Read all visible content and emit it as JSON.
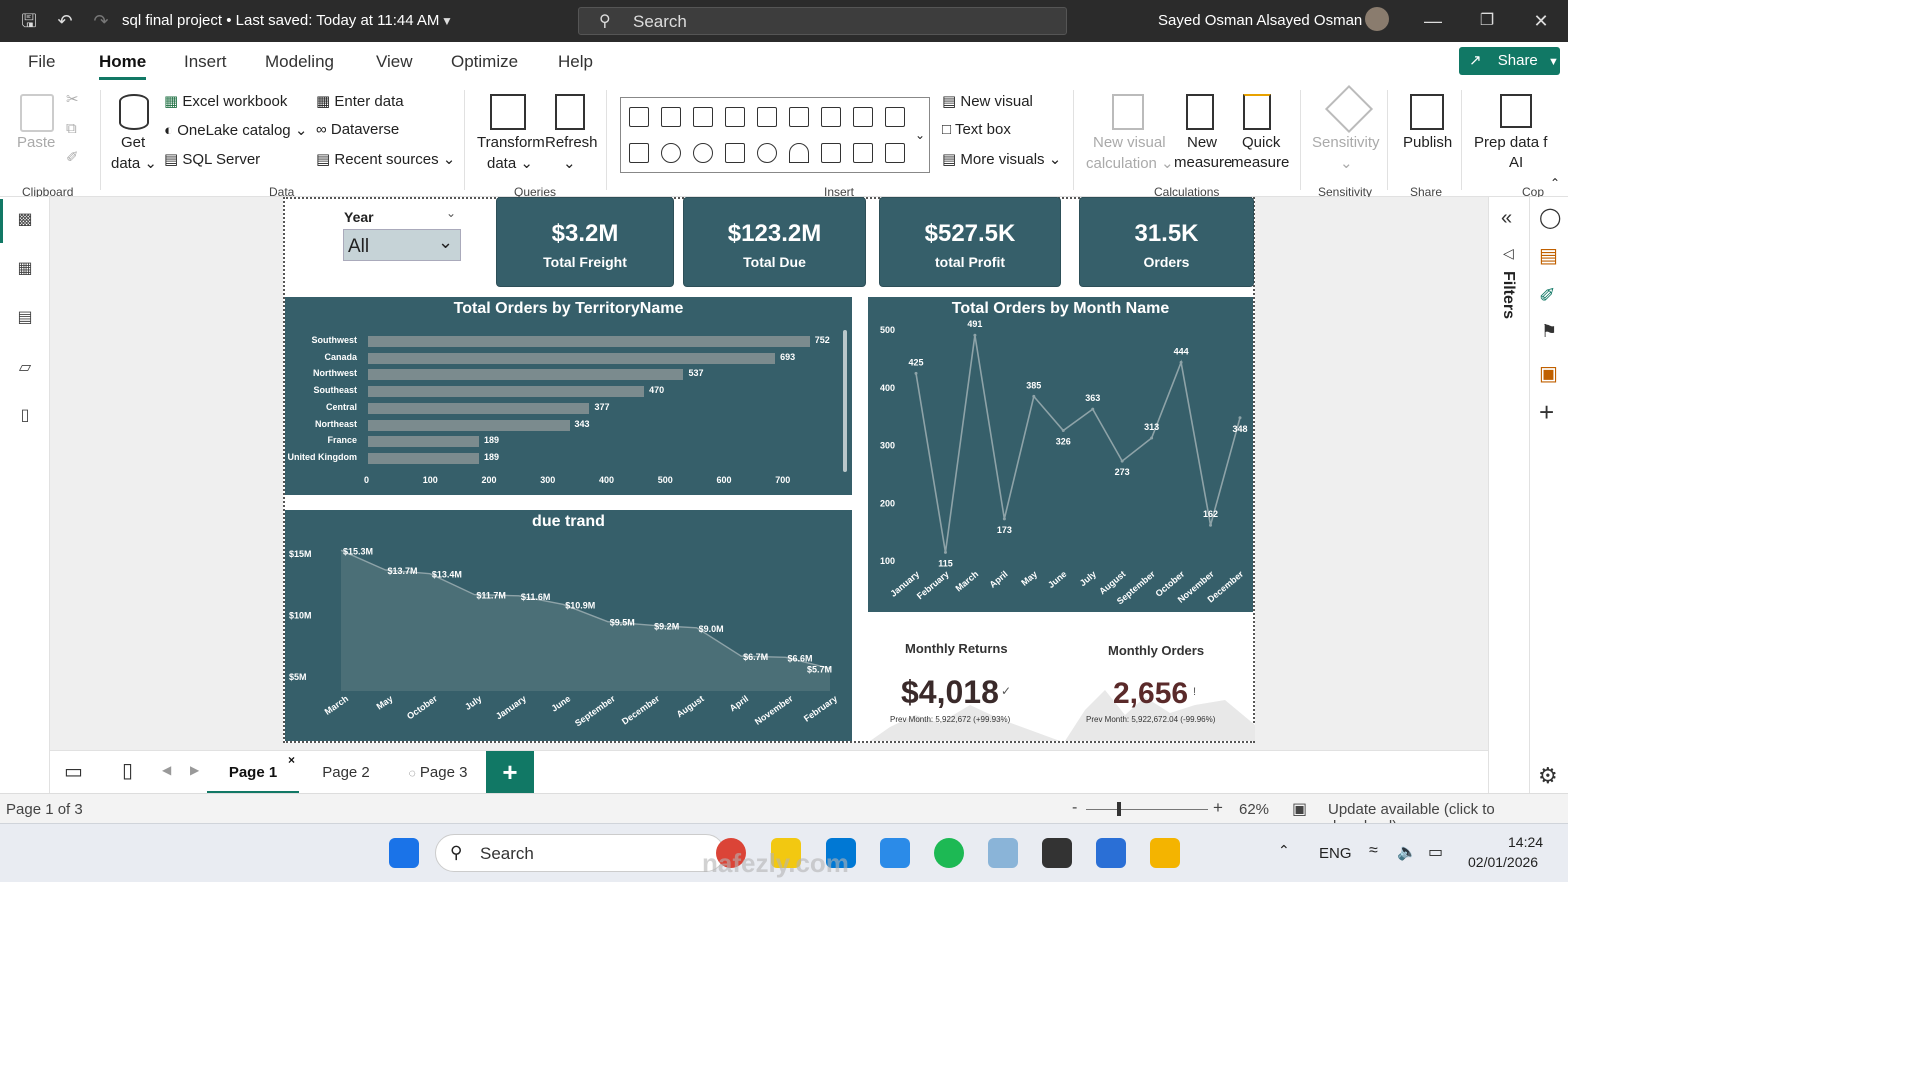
{
  "titlebar": {
    "file_title": "sql final project",
    "saved": "Last saved: Today at 11:44 AM",
    "search_placeholder": "Search",
    "user": "Sayed Osman Alsayed Osman"
  },
  "menu": [
    "File",
    "Home",
    "Insert",
    "Modeling",
    "View",
    "Optimize",
    "Help"
  ],
  "share_label": "Share",
  "ribbon": {
    "clipboard": {
      "paste": "Paste",
      "group": "Clipboard"
    },
    "data": {
      "get_data_1": "Get",
      "get_data_2": "data",
      "excel": "Excel workbook",
      "onelake": "OneLake catalog",
      "sql": "SQL Server",
      "enter": "Enter data",
      "dataverse": "Dataverse",
      "recent": "Recent sources",
      "group": "Data"
    },
    "queries": {
      "transform_1": "Transform",
      "transform_2": "data",
      "refresh": "Refresh",
      "group": "Queries"
    },
    "insert": {
      "new_visual": "New visual",
      "text_box": "Text box",
      "more_visuals": "More visuals",
      "group": "Insert"
    },
    "calculations": {
      "nvc_1": "New visual",
      "nvc_2": "calculation",
      "nm_1": "New",
      "nm_2": "measure",
      "qm_1": "Quick",
      "qm_2": "measure",
      "group": "Calculations"
    },
    "sensitivity": {
      "label": "Sensitivity",
      "group": "Sensitivity"
    },
    "share": {
      "publish": "Publish",
      "group": "Share"
    },
    "prep": {
      "l1": "Prep data f",
      "l2": "AI",
      "group": "Cop"
    }
  },
  "slicer": {
    "label": "Year",
    "value": "All"
  },
  "kpis": [
    {
      "value": "$3.2M",
      "label": "Total Freight"
    },
    {
      "value": "$123.2M",
      "label": "Total Due"
    },
    {
      "value": "$527.5K",
      "label": "total Profit"
    },
    {
      "value": "31.5K",
      "label": "Orders"
    }
  ],
  "chart_data": [
    {
      "type": "bar",
      "title": "Total Orders by TerritoryName",
      "categories": [
        "Southwest",
        "Canada",
        "Northwest",
        "Southeast",
        "Central",
        "Northeast",
        "France",
        "United Kingdom"
      ],
      "values": [
        752,
        693,
        537,
        470,
        377,
        343,
        189,
        189
      ],
      "xticks": [
        "0",
        "100",
        "200",
        "300",
        "400",
        "500",
        "600",
        "700"
      ],
      "xlim": [
        0,
        800
      ]
    },
    {
      "type": "line",
      "title": "Total Orders by Month Name",
      "categories": [
        "January",
        "February",
        "March",
        "April",
        "May",
        "June",
        "July",
        "August",
        "September",
        "October",
        "November",
        "December"
      ],
      "values": [
        425,
        115,
        491,
        173,
        385,
        326,
        363,
        273,
        313,
        444,
        162,
        348
      ],
      "yticks": [
        "500",
        "400",
        "300",
        "200",
        "100"
      ],
      "ylim": [
        100,
        500
      ]
    },
    {
      "type": "area",
      "title": "due trand",
      "categories": [
        "March",
        "May",
        "October",
        "July",
        "January",
        "June",
        "September",
        "December",
        "August",
        "April",
        "November",
        "February"
      ],
      "values": [
        15.3,
        13.7,
        13.4,
        11.7,
        11.6,
        10.9,
        9.5,
        9.2,
        9.0,
        6.7,
        6.6,
        5.7
      ],
      "value_labels": [
        "$15.3M",
        "$13.7M",
        "$13.4M",
        "$11.7M",
        "$11.6M",
        "$10.9M",
        "$9.5M",
        "$9.2M",
        "$9.0M",
        "$6.7M",
        "$6.6M",
        "$5.7M"
      ],
      "yticks": [
        "$15M",
        "$10M",
        "$5M"
      ],
      "ylim": [
        5,
        15
      ]
    }
  ],
  "cards": [
    {
      "title": "Monthly Returns",
      "value": "$4,018",
      "sub": "Prev Month: 5,922,672 (+99.93%)"
    },
    {
      "title": "Monthly Orders",
      "value": "2,656",
      "sub": "Prev Month: 5,922,672.04 (-99.96%)"
    }
  ],
  "right_pane": {
    "filters": "Filters"
  },
  "pages": [
    "Page 1",
    "Page 2",
    "Page 3"
  ],
  "status": {
    "page_of": "Page 1 of 3",
    "zoom": "62%",
    "update": "Update available (click to download)"
  },
  "taskbar": {
    "search": "Search",
    "lang": "ENG",
    "time": "14:24",
    "date": "02/01/2026"
  },
  "watermark": "nafezly.com",
  "colors": {
    "accent": "#117865",
    "panel": "#365f6a"
  }
}
